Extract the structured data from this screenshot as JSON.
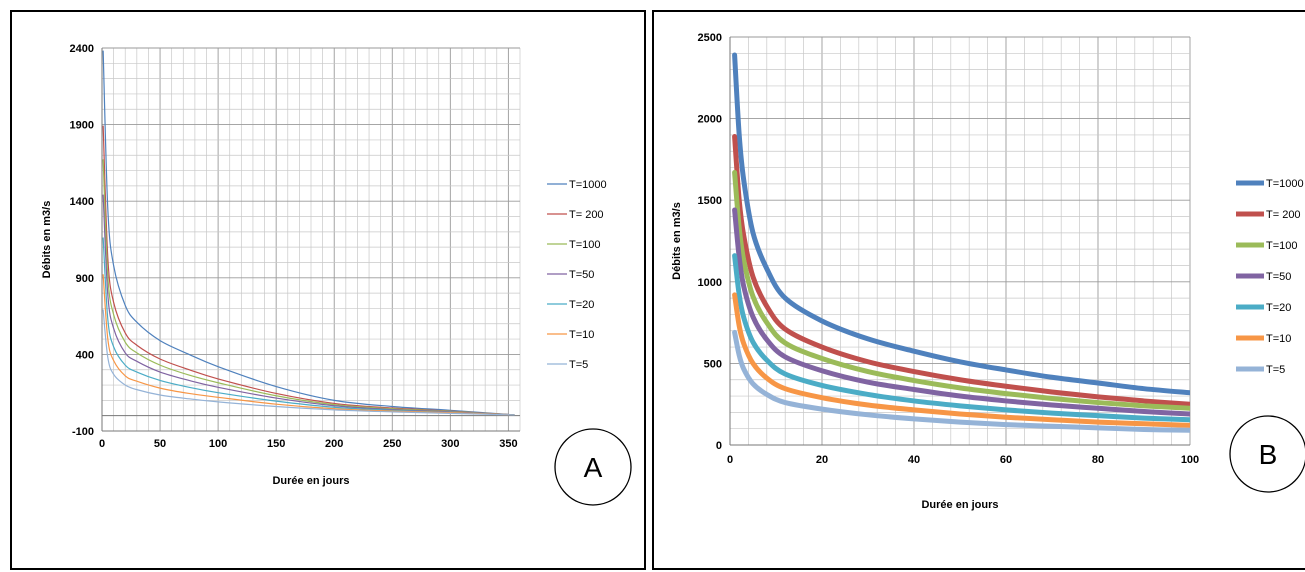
{
  "chart_data": [
    {
      "id": "A",
      "type": "line",
      "title": "",
      "xlabel": "Durée en jours",
      "ylabel": "Débits en m3/s",
      "xlim": [
        0,
        360
      ],
      "ylim": [
        -100,
        2400
      ],
      "x_ticks": [
        "0",
        "50",
        "100",
        "150",
        "200",
        "250",
        "300",
        "350"
      ],
      "x_tick_values": [
        0,
        50,
        100,
        150,
        200,
        250,
        300,
        350
      ],
      "y_ticks": [
        "-100",
        "400",
        "900",
        "1400",
        "1900",
        "2400"
      ],
      "y_tick_values": [
        -100,
        400,
        900,
        1400,
        1900,
        2400
      ],
      "grid": true,
      "legend": "right",
      "badge": "A",
      "series": [
        {
          "name": "T=1000",
          "color": "#4F81BD",
          "x": [
            1,
            5,
            10,
            20,
            30,
            50,
            75,
            100,
            150,
            200,
            250,
            300,
            355
          ],
          "values": [
            2380,
            1350,
            980,
            720,
            610,
            490,
            400,
            320,
            190,
            100,
            60,
            35,
            5
          ]
        },
        {
          "name": "T= 200",
          "color": "#C0504D",
          "x": [
            1,
            5,
            10,
            20,
            30,
            50,
            75,
            100,
            150,
            200,
            250,
            300,
            355
          ],
          "values": [
            1890,
            1030,
            740,
            540,
            460,
            370,
            300,
            240,
            145,
            80,
            50,
            30,
            5
          ]
        },
        {
          "name": "T=100",
          "color": "#9BBB59",
          "x": [
            1,
            5,
            10,
            20,
            30,
            50,
            75,
            100,
            150,
            200,
            250,
            300,
            355
          ],
          "values": [
            1670,
            910,
            660,
            480,
            410,
            330,
            265,
            215,
            130,
            72,
            45,
            28,
            5
          ]
        },
        {
          "name": "T=50",
          "color": "#8064A2",
          "x": [
            1,
            5,
            10,
            20,
            30,
            50,
            75,
            100,
            150,
            200,
            250,
            300,
            355
          ],
          "values": [
            1440,
            790,
            570,
            410,
            355,
            285,
            230,
            185,
            115,
            65,
            40,
            25,
            5
          ]
        },
        {
          "name": "T=20",
          "color": "#4BACC6",
          "x": [
            1,
            5,
            10,
            20,
            30,
            50,
            75,
            100,
            150,
            200,
            250,
            300,
            355
          ],
          "values": [
            1160,
            630,
            450,
            330,
            285,
            230,
            185,
            150,
            95,
            55,
            35,
            22,
            5
          ]
        },
        {
          "name": "T=10",
          "color": "#F79646",
          "x": [
            1,
            5,
            10,
            20,
            30,
            50,
            75,
            100,
            150,
            200,
            250,
            300,
            355
          ],
          "values": [
            920,
            500,
            360,
            260,
            225,
            180,
            145,
            120,
            75,
            45,
            30,
            20,
            5
          ]
        },
        {
          "name": "T=5",
          "color": "#95B3D7",
          "x": [
            1,
            5,
            10,
            20,
            30,
            50,
            75,
            100,
            150,
            200,
            250,
            300,
            355
          ],
          "values": [
            690,
            380,
            270,
            200,
            170,
            135,
            110,
            90,
            60,
            38,
            25,
            15,
            5
          ]
        }
      ]
    },
    {
      "id": "B",
      "type": "line",
      "title": "",
      "xlabel": "Durée en jours",
      "ylabel": "Débits en m3/s",
      "xlim": [
        0,
        100
      ],
      "ylim": [
        0,
        2500
      ],
      "x_ticks": [
        "0",
        "20",
        "40",
        "60",
        "80",
        "100"
      ],
      "x_tick_values": [
        0,
        20,
        40,
        60,
        80,
        100
      ],
      "y_ticks": [
        "0",
        "500",
        "1000",
        "1500",
        "2000",
        "2500"
      ],
      "y_tick_values": [
        0,
        500,
        1000,
        1500,
        2000,
        2500
      ],
      "grid": true,
      "legend": "right",
      "badge": "B",
      "series": [
        {
          "name": "T=1000",
          "color": "#4F81BD",
          "x": [
            1,
            2,
            3,
            5,
            8,
            12,
            20,
            30,
            40,
            50,
            60,
            70,
            80,
            90,
            100
          ],
          "values": [
            2390,
            1900,
            1620,
            1300,
            1080,
            900,
            760,
            650,
            575,
            510,
            460,
            415,
            380,
            345,
            320
          ]
        },
        {
          "name": "T= 200",
          "color": "#C0504D",
          "x": [
            1,
            2,
            3,
            5,
            8,
            12,
            20,
            30,
            40,
            50,
            60,
            70,
            80,
            90,
            100
          ],
          "values": [
            1890,
            1500,
            1280,
            1030,
            850,
            710,
            600,
            510,
            450,
            400,
            360,
            325,
            295,
            270,
            250
          ]
        },
        {
          "name": "T=100",
          "color": "#9BBB59",
          "x": [
            1,
            2,
            3,
            5,
            8,
            12,
            20,
            30,
            40,
            50,
            60,
            70,
            80,
            90,
            100
          ],
          "values": [
            1670,
            1330,
            1130,
            910,
            750,
            625,
            530,
            450,
            395,
            350,
            315,
            285,
            260,
            240,
            225
          ]
        },
        {
          "name": "T=50",
          "color": "#8064A2",
          "x": [
            1,
            2,
            3,
            5,
            8,
            12,
            20,
            30,
            40,
            50,
            60,
            70,
            80,
            90,
            100
          ],
          "values": [
            1440,
            1150,
            970,
            785,
            645,
            540,
            455,
            385,
            340,
            300,
            270,
            245,
            225,
            205,
            190
          ]
        },
        {
          "name": "T=20",
          "color": "#4BACC6",
          "x": [
            1,
            2,
            3,
            5,
            8,
            12,
            20,
            30,
            40,
            50,
            60,
            70,
            80,
            90,
            100
          ],
          "values": [
            1160,
            920,
            780,
            630,
            520,
            435,
            365,
            310,
            270,
            240,
            215,
            195,
            180,
            165,
            155
          ]
        },
        {
          "name": "T=10",
          "color": "#F79646",
          "x": [
            1,
            2,
            3,
            5,
            8,
            12,
            20,
            30,
            40,
            50,
            60,
            70,
            80,
            90,
            100
          ],
          "values": [
            920,
            730,
            620,
            500,
            410,
            345,
            290,
            245,
            215,
            190,
            170,
            155,
            140,
            130,
            120
          ]
        },
        {
          "name": "T=5",
          "color": "#95B3D7",
          "x": [
            1,
            2,
            3,
            5,
            8,
            12,
            20,
            30,
            40,
            50,
            60,
            70,
            80,
            90,
            100
          ],
          "values": [
            690,
            550,
            465,
            375,
            310,
            260,
            220,
            185,
            160,
            140,
            125,
            115,
            105,
            95,
            90
          ]
        }
      ]
    }
  ]
}
